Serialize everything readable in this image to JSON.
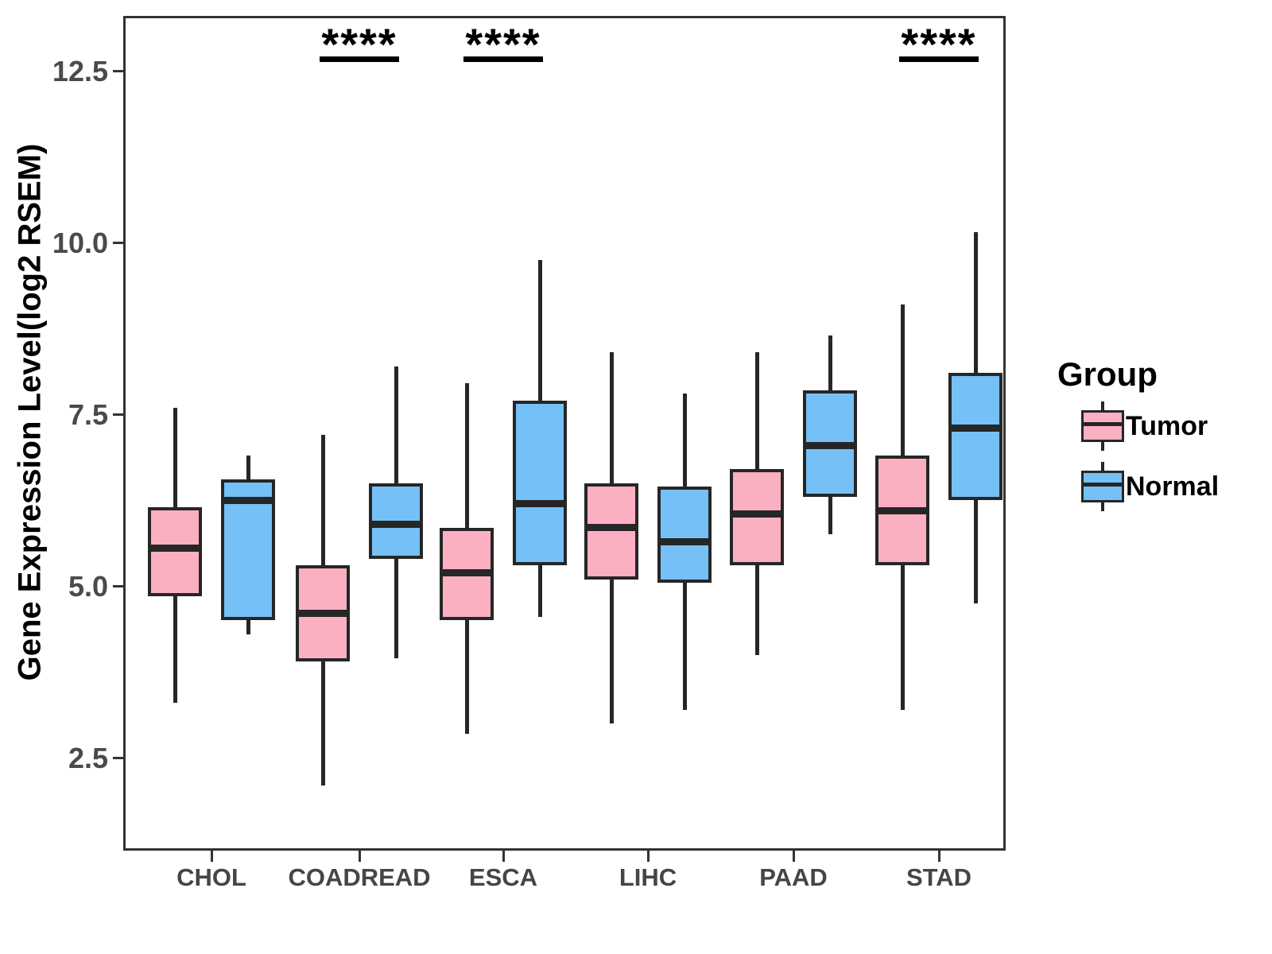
{
  "figure": {
    "y_axis": {
      "title": "Gene Expression Level(log2 RSEM)",
      "tick_labels": [
        "2.5",
        "5.0",
        "7.5",
        "10.0",
        "12.5"
      ]
    },
    "x_axis": {
      "categories": [
        "CHOL",
        "COADREAD",
        "ESCA",
        "LIHC",
        "PAAD",
        "STAD"
      ]
    },
    "legend": {
      "title": "Group",
      "items": [
        {
          "label": "Tumor",
          "color": "#FBB0C1"
        },
        {
          "label": "Normal",
          "color": "#75C1F7"
        }
      ]
    },
    "colors": {
      "tumor_fill": "#FBB0C1",
      "normal_fill": "#75C1F7",
      "ink": "#262626",
      "panel_border": "#333333",
      "tick_text": "#4a4a4a"
    }
  },
  "chart_data": {
    "type": "boxplot",
    "title": "",
    "xlabel": "",
    "ylabel": "Gene Expression Level(log2 RSEM)",
    "categories": [
      "CHOL",
      "COADREAD",
      "ESCA",
      "LIHC",
      "PAAD",
      "STAD"
    ],
    "yticks": [
      2.5,
      5.0,
      7.5,
      10.0,
      12.5
    ],
    "ylim": [
      1.15,
      13.3
    ],
    "grid": false,
    "legend_position": "right",
    "series": [
      {
        "name": "Tumor",
        "color": "#FBB0C1",
        "values": [
          {
            "min": 3.3,
            "q1": 4.85,
            "median": 5.55,
            "q3": 6.15,
            "max": 7.6
          },
          {
            "min": 2.1,
            "q1": 3.9,
            "median": 4.6,
            "q3": 5.3,
            "max": 7.2
          },
          {
            "min": 2.85,
            "q1": 4.5,
            "median": 5.2,
            "q3": 5.85,
            "max": 7.95
          },
          {
            "min": 3.0,
            "q1": 5.1,
            "median": 5.85,
            "q3": 6.5,
            "max": 8.4
          },
          {
            "min": 4.0,
            "q1": 5.3,
            "median": 6.05,
            "q3": 6.7,
            "max": 8.4
          },
          {
            "min": 3.2,
            "q1": 5.3,
            "median": 6.1,
            "q3": 6.9,
            "max": 9.1
          }
        ]
      },
      {
        "name": "Normal",
        "color": "#75C1F7",
        "values": [
          {
            "min": 4.3,
            "q1": 4.5,
            "median": 6.25,
            "q3": 6.55,
            "max": 6.9
          },
          {
            "min": 3.95,
            "q1": 5.4,
            "median": 5.9,
            "q3": 6.5,
            "max": 8.2
          },
          {
            "min": 4.55,
            "q1": 5.3,
            "median": 6.2,
            "q3": 7.7,
            "max": 9.75
          },
          {
            "min": 3.2,
            "q1": 5.05,
            "median": 5.65,
            "q3": 6.45,
            "max": 7.8
          },
          {
            "min": 5.75,
            "q1": 6.3,
            "median": 7.05,
            "q3": 7.85,
            "max": 8.65
          },
          {
            "min": 4.75,
            "q1": 6.25,
            "median": 7.3,
            "q3": 8.1,
            "max": 10.15
          }
        ]
      }
    ],
    "significance": [
      {
        "category": "COADREAD",
        "label": "****"
      },
      {
        "category": "ESCA",
        "label": "****"
      },
      {
        "category": "STAD",
        "label": "****"
      }
    ]
  }
}
